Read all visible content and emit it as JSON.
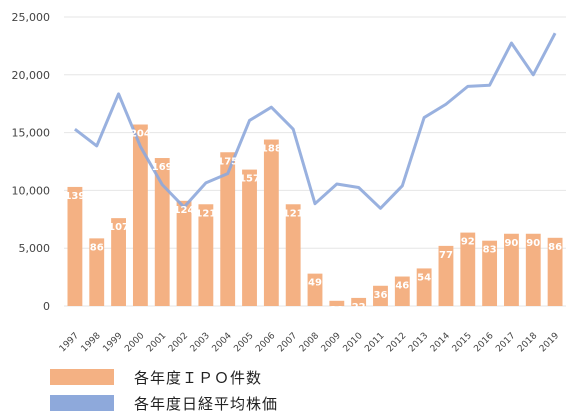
{
  "chart_data": {
    "type": "bar",
    "categories": [
      "1997",
      "1998",
      "1999",
      "2000",
      "2001",
      "2002",
      "2003",
      "2004",
      "2005",
      "2006",
      "2007",
      "2008",
      "2009",
      "2010",
      "2011",
      "2012",
      "2013",
      "2014",
      "2015",
      "2016",
      "2017",
      "2018",
      "2019"
    ],
    "ylim": [
      0,
      25000
    ],
    "yticks": [
      "0",
      "5,000",
      "10,000",
      "15,000",
      "20,000",
      "25,000"
    ],
    "grid": true,
    "legend_position": "bottom-left",
    "series": [
      {
        "name": "各年度ＩＰＯ件数",
        "type": "bar",
        "color": "#F4B183",
        "labels": [
          139,
          86,
          107,
          204,
          169,
          124,
          121,
          175,
          157,
          188,
          121,
          49,
          19,
          22,
          36,
          46,
          54,
          77,
          92,
          83,
          90,
          90,
          86
        ],
        "values": [
          10300,
          5850,
          7600,
          15700,
          12800,
          9100,
          8800,
          13300,
          11800,
          14400,
          8800,
          2800,
          450,
          700,
          1750,
          2550,
          3250,
          5200,
          6350,
          5650,
          6250,
          6250,
          5900
        ]
      },
      {
        "name": "各年度日経平均株価",
        "type": "line",
        "color": "#8EA9DB",
        "values": [
          15300,
          13850,
          18350,
          13800,
          10500,
          8550,
          10650,
          11450,
          16050,
          17200,
          15300,
          8850,
          10550,
          10250,
          8450,
          10400,
          16300,
          17450,
          19000,
          19100,
          22750,
          20000,
          23600
        ]
      }
    ]
  }
}
